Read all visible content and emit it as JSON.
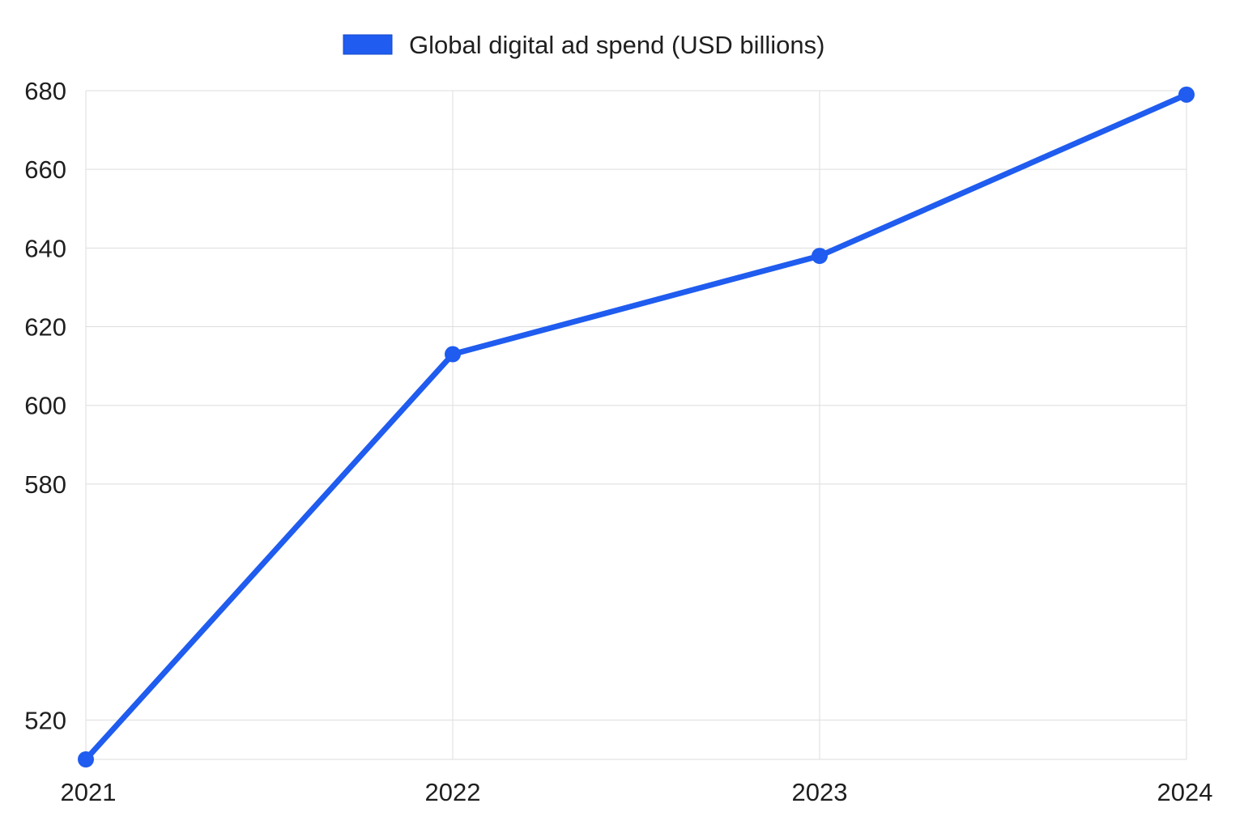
{
  "chart_data": {
    "type": "line",
    "title": "",
    "xlabel": "",
    "ylabel": "",
    "categories": [
      "2021",
      "2022",
      "2023",
      "2024"
    ],
    "series": [
      {
        "name": "Global digital ad spend (USD billions)",
        "values": [
          510,
          613,
          638,
          679
        ],
        "color": "#1f5cef"
      }
    ],
    "ylim": [
      510,
      680
    ],
    "yticks": [
      520,
      580,
      600,
      620,
      640,
      660,
      680
    ],
    "grid": true,
    "legend_position": "top-center"
  }
}
